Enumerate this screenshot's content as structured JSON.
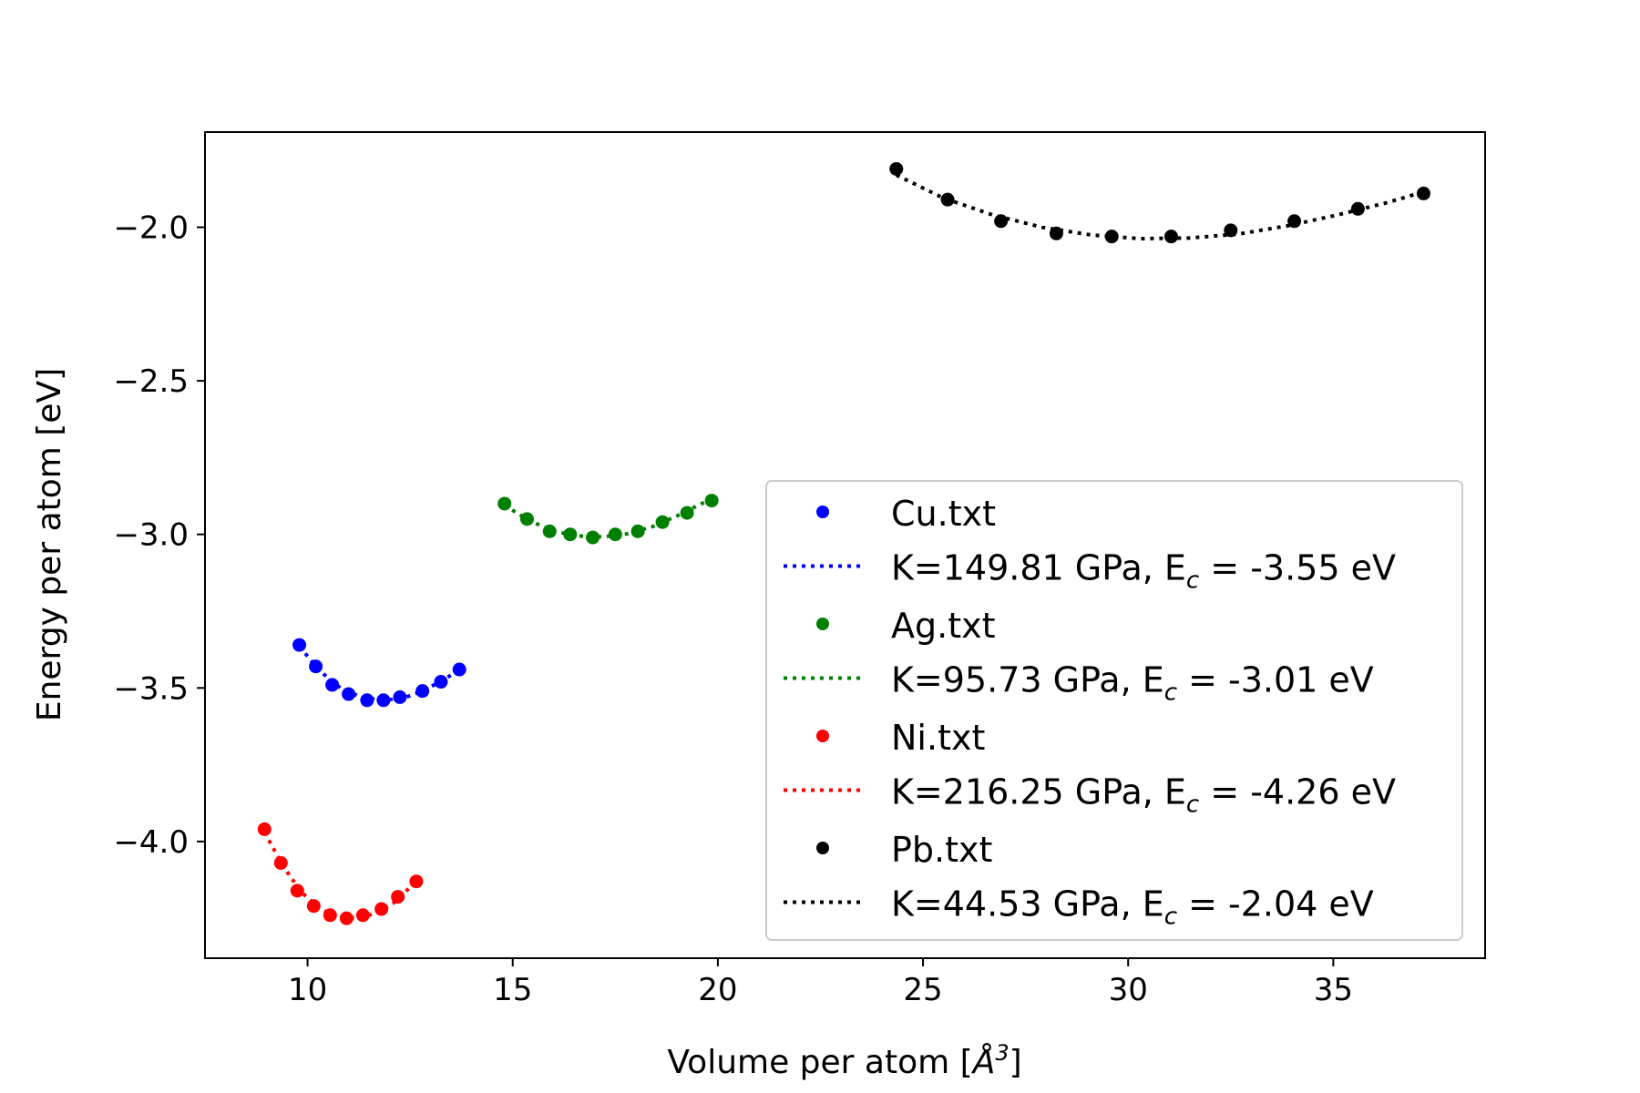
{
  "chart_data": {
    "type": "scatter",
    "title": "",
    "xlabel_main": "Volume per atom [",
    "xlabel_unit": "Å",
    "xlabel_exp": "3",
    "xlabel_close": "]",
    "ylabel": "Energy per atom [eV]",
    "xlim": [
      7.5,
      38.7
    ],
    "ylim": [
      -4.38,
      -1.69
    ],
    "xticks": [
      10,
      15,
      20,
      25,
      30,
      35
    ],
    "yticks": [
      -4.0,
      -3.5,
      -3.0,
      -2.5,
      -2.0
    ],
    "ytick_labels": [
      "−4.0",
      "−3.5",
      "−3.0",
      "−2.5",
      "−2.0"
    ],
    "legend_position": "lower-right",
    "grid": false,
    "series": [
      {
        "name": "Cu.txt",
        "color": "#0000ff",
        "x": [
          9.8,
          10.2,
          10.6,
          11.0,
          11.45,
          11.85,
          12.25,
          12.8,
          13.25,
          13.7
        ],
        "y": [
          -3.36,
          -3.43,
          -3.49,
          -3.52,
          -3.54,
          -3.54,
          -3.53,
          -3.51,
          -3.48,
          -3.44
        ],
        "fit": {
          "label_prefix": "K=149.81 GPa, E",
          "label_sub": "c",
          "label_suffix": " = -3.55 eV",
          "x": [
            9.8,
            10.3,
            10.8,
            11.3,
            11.8,
            12.3,
            12.8,
            13.3,
            13.7
          ],
          "y": [
            -3.365,
            -3.445,
            -3.5,
            -3.53,
            -3.54,
            -3.535,
            -3.51,
            -3.475,
            -3.44
          ]
        }
      },
      {
        "name": "Ag.txt",
        "color": "#008000",
        "x": [
          14.8,
          15.35,
          15.9,
          16.4,
          16.95,
          17.5,
          18.05,
          18.65,
          19.25,
          19.85
        ],
        "y": [
          -2.9,
          -2.95,
          -2.99,
          -3.0,
          -3.01,
          -3.0,
          -2.99,
          -2.96,
          -2.93,
          -2.89
        ],
        "fit": {
          "label_prefix": "K=95.73 GPa, E",
          "label_sub": "c",
          "label_suffix": " = -3.01 eV",
          "x": [
            14.8,
            15.4,
            16.0,
            16.6,
            17.2,
            17.8,
            18.4,
            19.0,
            19.6,
            19.85
          ],
          "y": [
            -2.905,
            -2.955,
            -2.99,
            -3.005,
            -3.008,
            -2.998,
            -2.975,
            -2.94,
            -2.9,
            -2.885
          ]
        }
      },
      {
        "name": "Ni.txt",
        "color": "#ff0000",
        "x": [
          8.95,
          9.35,
          9.75,
          10.15,
          10.55,
          10.95,
          11.35,
          11.8,
          12.2,
          12.65
        ],
        "y": [
          -3.96,
          -4.07,
          -4.16,
          -4.21,
          -4.24,
          -4.25,
          -4.24,
          -4.22,
          -4.18,
          -4.13
        ],
        "fit": {
          "label_prefix": "K=216.25 GPa, E",
          "label_sub": "c",
          "label_suffix": " = -4.26 eV",
          "x": [
            8.95,
            9.4,
            9.85,
            10.3,
            10.75,
            11.2,
            11.65,
            12.1,
            12.65
          ],
          "y": [
            -3.97,
            -4.08,
            -4.165,
            -4.22,
            -4.245,
            -4.25,
            -4.235,
            -4.2,
            -4.13
          ]
        }
      },
      {
        "name": "Pb.txt",
        "color": "#000000",
        "x": [
          24.35,
          25.6,
          26.9,
          28.25,
          29.6,
          31.05,
          32.5,
          34.05,
          35.6,
          37.2
        ],
        "y": [
          -1.81,
          -1.91,
          -1.98,
          -2.02,
          -2.03,
          -2.03,
          -2.01,
          -1.98,
          -1.94,
          -1.89
        ],
        "fit": {
          "label_prefix": "K=44.53 GPa, E",
          "label_sub": "c",
          "label_suffix": " = -2.04 eV",
          "x": [
            24.35,
            25.5,
            26.7,
            27.9,
            29.1,
            30.3,
            31.5,
            32.7,
            33.9,
            35.1,
            36.3,
            37.2
          ],
          "y": [
            -1.83,
            -1.905,
            -1.96,
            -2.0,
            -2.025,
            -2.037,
            -2.035,
            -2.022,
            -1.995,
            -1.96,
            -1.92,
            -1.885
          ]
        }
      }
    ]
  }
}
